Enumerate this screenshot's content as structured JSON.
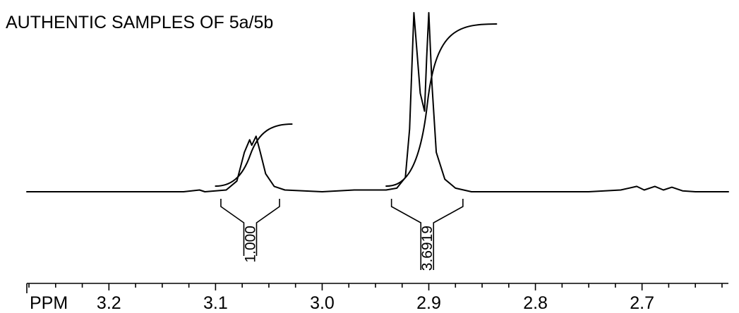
{
  "chart_data": {
    "type": "line",
    "title": "AUTHENTIC SAMPLES OF 5a/5b",
    "axis_unit_label": "PPM",
    "x_axis": {
      "reversed": true,
      "range": [
        3.277,
        2.619
      ],
      "tick_labels": [
        "3.2",
        "3.1",
        "3.0",
        "2.9",
        "2.8",
        "2.7"
      ],
      "tick_values": [
        3.2,
        3.1,
        3.0,
        2.9,
        2.8,
        2.7
      ],
      "minor_tick_step": 0.025
    },
    "series": [
      {
        "points": [
          [
            3.277,
            0.0
          ],
          [
            3.2,
            0.0
          ],
          [
            3.13,
            0.0
          ],
          [
            3.115,
            0.01
          ],
          [
            3.11,
            0.0
          ],
          [
            3.09,
            0.01
          ],
          [
            3.08,
            0.06
          ],
          [
            3.073,
            0.22
          ],
          [
            3.068,
            0.29
          ],
          [
            3.066,
            0.26
          ],
          [
            3.062,
            0.31
          ],
          [
            3.058,
            0.22
          ],
          [
            3.053,
            0.1
          ],
          [
            3.045,
            0.03
          ],
          [
            3.035,
            0.01
          ],
          [
            3.0,
            0.0
          ],
          [
            2.97,
            0.01
          ],
          [
            2.94,
            0.01
          ],
          [
            2.93,
            0.02
          ],
          [
            2.922,
            0.08
          ],
          [
            2.918,
            0.35
          ],
          [
            2.914,
            1.0
          ],
          [
            2.912,
            0.85
          ],
          [
            2.908,
            0.55
          ],
          [
            2.904,
            0.45
          ],
          [
            2.902,
            0.75
          ],
          [
            2.9,
            1.0
          ],
          [
            2.897,
            0.6
          ],
          [
            2.893,
            0.22
          ],
          [
            2.885,
            0.07
          ],
          [
            2.875,
            0.02
          ],
          [
            2.86,
            0.0
          ],
          [
            2.75,
            0.0
          ],
          [
            2.72,
            0.01
          ],
          [
            2.705,
            0.03
          ],
          [
            2.698,
            0.01
          ],
          [
            2.688,
            0.03
          ],
          [
            2.68,
            0.01
          ],
          [
            2.672,
            0.025
          ],
          [
            2.662,
            0.005
          ],
          [
            2.65,
            0.0
          ],
          [
            2.619,
            0.0
          ]
        ]
      }
    ],
    "integrals": [
      {
        "label": "1.000",
        "from": 3.095,
        "to": 3.04
      },
      {
        "label": "3.6919",
        "from": 2.935,
        "to": 2.868
      }
    ]
  }
}
